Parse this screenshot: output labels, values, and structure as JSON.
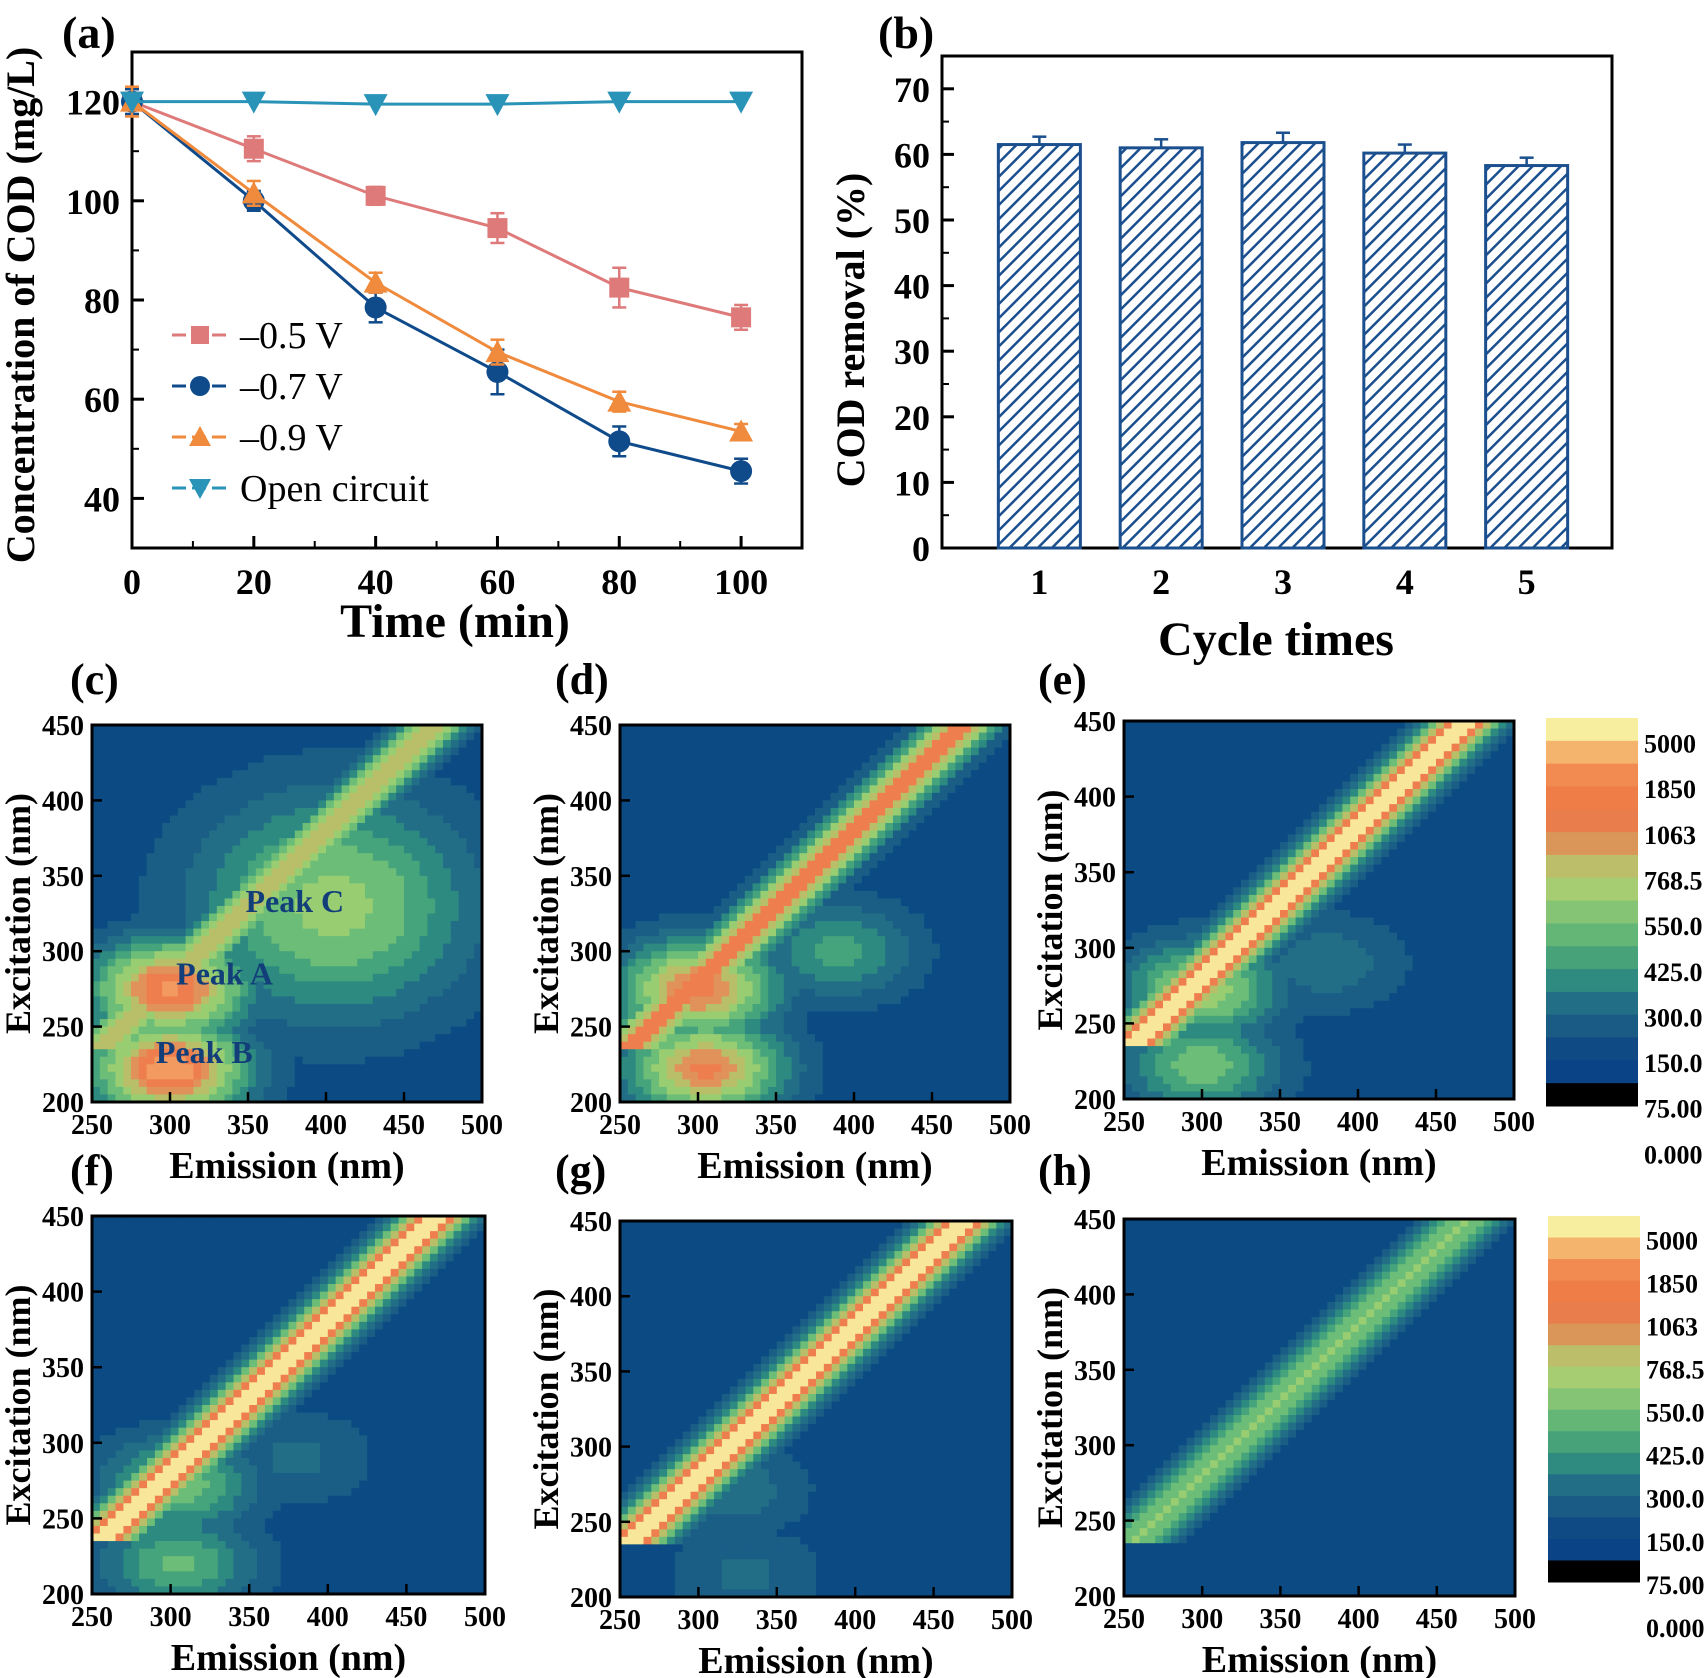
{
  "colors": {
    "pink": "#de7a7a",
    "navy": "#0f4a8a",
    "orange": "#f08a3c",
    "teal": "#2a93b8",
    "bar_stroke": "#1b4f8e",
    "eem_bg": "#0b4a84"
  },
  "chart_data": [
    {
      "panel": "(a)",
      "type": "line",
      "xlabel": "Time (min)",
      "ylabel": "Concentration of COD (mg/L)",
      "x": [
        0,
        20,
        40,
        60,
        80,
        100
      ],
      "xticks": [
        "0",
        "20",
        "40",
        "60",
        "80",
        "100"
      ],
      "yticks": [
        "40",
        "60",
        "80",
        "100",
        "120"
      ],
      "xlim": [
        0,
        110
      ],
      "ylim": [
        30,
        130
      ],
      "legend_position": "lower-left",
      "series": [
        {
          "name": "–0.5 V",
          "marker": "square",
          "color": "#de7a7a",
          "values": [
            120,
            110.5,
            101,
            94.5,
            82.5,
            76.5
          ],
          "errors": [
            2.5,
            2.5,
            1.8,
            3,
            4,
            2.5
          ]
        },
        {
          "name": "–0.7 V",
          "marker": "circle",
          "color": "#0f4a8a",
          "values": [
            120,
            100,
            78.5,
            65.5,
            51.5,
            45.5
          ],
          "errors": [
            2.5,
            2,
            3,
            4.5,
            3,
            2.5
          ]
        },
        {
          "name": "–0.9 V",
          "marker": "triangle-up",
          "color": "#f08a3c",
          "values": [
            120,
            101.5,
            83.5,
            69.5,
            59.5,
            53.5
          ],
          "errors": [
            3,
            2.5,
            2,
            2.5,
            2,
            1.5
          ]
        },
        {
          "name": "Open circuit",
          "marker": "triangle-down",
          "color": "#2a93b8",
          "values": [
            120,
            120,
            119.5,
            119.5,
            120,
            120
          ],
          "errors": [
            0,
            0,
            0,
            0,
            0,
            0
          ]
        }
      ]
    },
    {
      "panel": "(b)",
      "type": "bar",
      "xlabel": "Cycle times",
      "ylabel": "COD removal (%)",
      "categories": [
        "1",
        "2",
        "3",
        "4",
        "5"
      ],
      "values": [
        61.5,
        61,
        61.8,
        60.2,
        58.3
      ],
      "errors": [
        1.2,
        1.3,
        1.5,
        1.3,
        1.2
      ],
      "ylim": [
        0,
        75
      ],
      "yticks": [
        "0",
        "10",
        "20",
        "30",
        "40",
        "50",
        "60",
        "70"
      ],
      "fill": "hatched"
    },
    {
      "panel": "(c)-(h)",
      "type": "heatmap",
      "xlabel": "Emission (nm)",
      "ylabel": "Excitation (nm)",
      "xlim": [
        250,
        500
      ],
      "ylim": [
        200,
        450
      ],
      "xticks": [
        "250",
        "300",
        "350",
        "400",
        "450",
        "500"
      ],
      "yticks": [
        "200",
        "250",
        "300",
        "350",
        "400",
        "450"
      ],
      "colorbar_labels": [
        "5000",
        "1850",
        "1063",
        "768.5",
        "550.0",
        "425.0",
        "300.0",
        "150.0",
        "75.00",
        "0.000"
      ],
      "panels": [
        {
          "label": "(c)",
          "peaks": [
            {
              "name": "Peak A",
              "em": 300,
              "ex": 275,
              "level": 0.84
            },
            {
              "name": "Peak B",
              "em": 300,
              "ex": 222,
              "level": 0.9
            },
            {
              "name": "Peak C",
              "em": 405,
              "ex": 330,
              "level": 0.52
            }
          ],
          "annotations": [
            "Peak C",
            "Peak A",
            "Peak B"
          ],
          "diag": 0.64
        },
        {
          "label": "(d)",
          "peaks": [
            {
              "em": 300,
              "ex": 275,
              "level": 0.78
            },
            {
              "em": 305,
              "ex": 222,
              "level": 0.76
            },
            {
              "em": 390,
              "ex": 300,
              "level": 0.34
            }
          ],
          "diag": 0.78
        },
        {
          "label": "(e)",
          "peaks": [
            {
              "em": 300,
              "ex": 272,
              "level": 0.55
            },
            {
              "em": 300,
              "ex": 222,
              "level": 0.44
            },
            {
              "em": 380,
              "ex": 290,
              "level": 0.2
            }
          ],
          "diag": 0.97
        },
        {
          "label": "(f)",
          "peaks": [
            {
              "em": 305,
              "ex": 272,
              "level": 0.44
            },
            {
              "em": 305,
              "ex": 220,
              "level": 0.4
            },
            {
              "em": 380,
              "ex": 290,
              "level": 0.16
            }
          ],
          "diag": 0.97
        },
        {
          "label": "(g)",
          "peaks": [
            {
              "em": 320,
              "ex": 272,
              "level": 0.2
            },
            {
              "em": 330,
              "ex": 215,
              "level": 0.16
            }
          ],
          "diag": 0.97
        },
        {
          "label": "(h)",
          "peaks": [],
          "diag": 0.5
        }
      ]
    }
  ]
}
